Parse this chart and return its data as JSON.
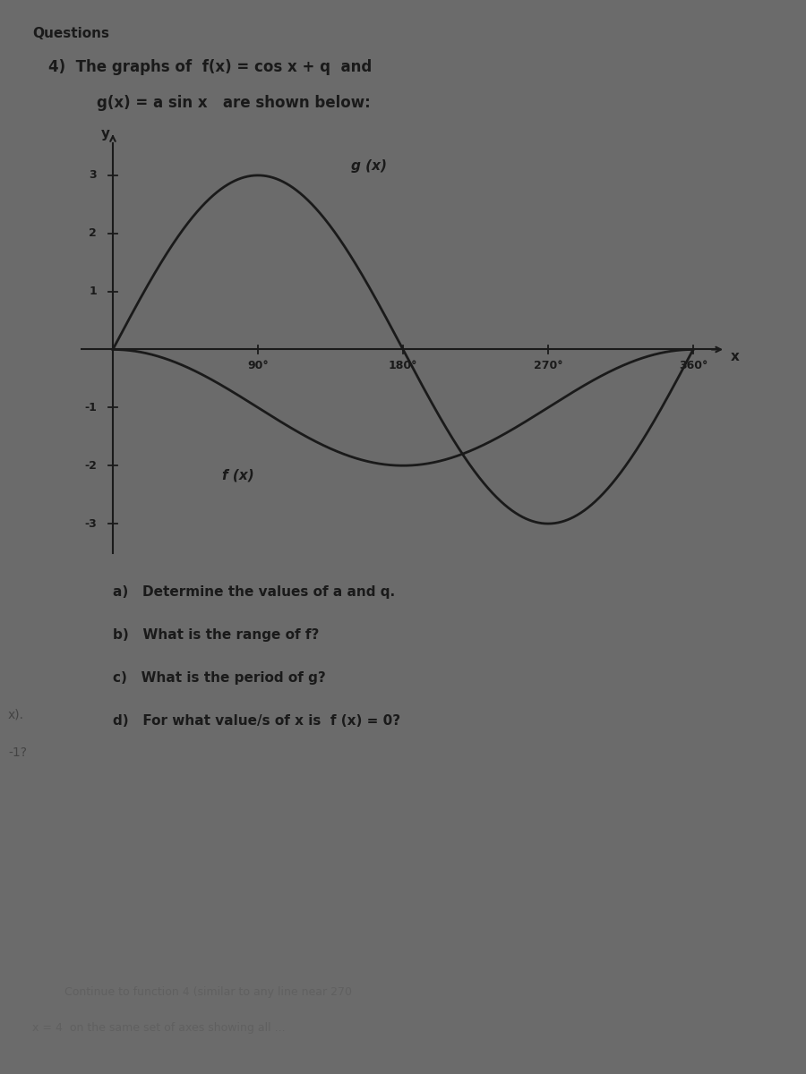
{
  "background_color": "#6b6b6b",
  "a_val": 3,
  "q_val": -1,
  "x_min": 0,
  "x_max": 360,
  "y_min": -3.6,
  "y_max": 3.8,
  "y_ticks": [
    -3,
    -2,
    -1,
    1,
    2,
    3
  ],
  "x_ticks": [
    90,
    180,
    270,
    360
  ],
  "x_tick_labels": [
    "90°",
    "180°",
    "270°",
    "360°"
  ],
  "g_label": "g (x)",
  "f_label": "f (x)",
  "line_color": "#1a1a1a",
  "axis_color": "#1a1a1a",
  "text_color": "#1a1a1a",
  "questions_label": "Questions",
  "title_line1": "4)  The graphs of  f(x) = cos x + q  and",
  "title_line2": "g(x) = a sin x   are shown below:",
  "question_a": "a)   Determine the values of a and q.",
  "question_b": "b)   What is the range of f?",
  "question_c": "c)   What is the period of g?",
  "question_d": "d)   For what value/s of x is  f (x) = 0?",
  "bottom_text1": "Continue to function 4 (similar to any line near 270",
  "bottom_text2": "x = 4  on the same set of axes showing all ..."
}
